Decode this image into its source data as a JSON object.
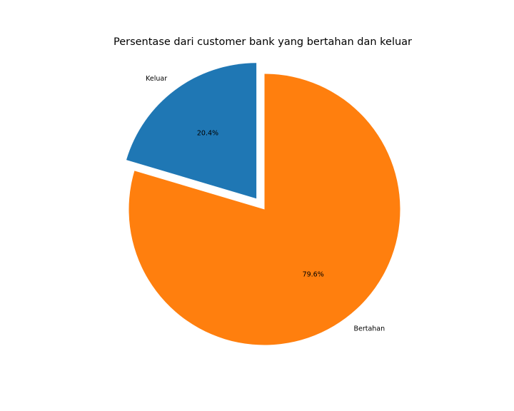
{
  "chart_data": {
    "type": "pie",
    "title": "Persentase dari customer bank yang bertahan dan keluar",
    "slices": [
      {
        "label": "Keluar",
        "value": 20.4,
        "pct_label": "20.4%",
        "color": "#1f77b4",
        "explode": true
      },
      {
        "label": "Bertahan",
        "value": 79.6,
        "pct_label": "79.6%",
        "color": "#ff7f0e",
        "explode": false
      }
    ],
    "start_angle_deg": 90,
    "direction": "counterclockwise",
    "legend": "none"
  }
}
